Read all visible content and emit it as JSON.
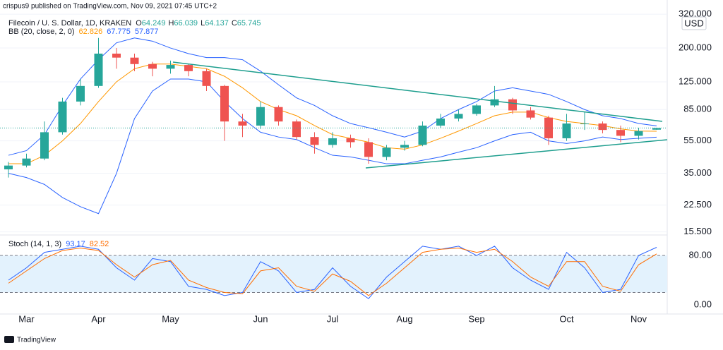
{
  "header": {
    "published": "crispus9 published on TradingView.com, Nov 09, 2021 07:45 UTC+2"
  },
  "footer": {
    "brand": "TradingView"
  },
  "chart_data": [
    {
      "type": "candlestick",
      "title": "Filecoin / U. S. Dollar, 1D, KRAKEN",
      "ohlc_labels": [
        "O",
        "H",
        "L",
        "C"
      ],
      "currency": "USD",
      "categories": [
        null,
        "Mar",
        null,
        null,
        null,
        "Apr",
        null,
        null,
        null,
        "May",
        null,
        null,
        null,
        null,
        "Jun",
        null,
        null,
        null,
        "Jul",
        null,
        null,
        null,
        "Aug",
        null,
        null,
        null,
        "Sep",
        null,
        null,
        null,
        null,
        "Oct",
        null,
        null,
        null,
        "Nov",
        null
      ],
      "open": [
        37,
        39,
        43,
        62,
        95,
        118,
        185,
        175,
        160,
        150,
        158,
        145,
        118,
        72,
        68,
        88,
        72,
        58,
        52,
        57,
        54,
        44,
        50,
        52,
        68,
        75,
        80,
        90,
        98,
        84,
        76,
        57,
        70,
        70,
        64,
        59,
        64.249
      ],
      "high": [
        41,
        46,
        72,
        100,
        130,
        230,
        200,
        185,
        165,
        168,
        160,
        150,
        120,
        80,
        95,
        90,
        74,
        62,
        62,
        60,
        57,
        52,
        55,
        72,
        80,
        85,
        92,
        118,
        100,
        88,
        78,
        80,
        82,
        72,
        68,
        66,
        66.039
      ],
      "low": [
        33,
        38,
        42,
        60,
        90,
        115,
        150,
        145,
        135,
        140,
        135,
        110,
        55,
        58,
        65,
        68,
        56,
        46,
        50,
        50,
        40,
        42,
        48,
        51,
        66,
        72,
        78,
        88,
        80,
        74,
        52,
        55,
        64,
        61,
        54,
        56,
        64.137
      ],
      "close": [
        39,
        43,
        62,
        95,
        118,
        185,
        175,
        160,
        150,
        158,
        145,
        118,
        72,
        68,
        88,
        72,
        58,
        52,
        57,
        54,
        44,
        50,
        52,
        68,
        75,
        80,
        90,
        98,
        84,
        76,
        57,
        70,
        70,
        64,
        59,
        63,
        65.745
      ],
      "up_color": "#26a69a",
      "down_color": "#ef5350",
      "indicator": {
        "label": "BB (20, close, 2, 0)",
        "series": [
          {
            "color": "#ff9800",
            "values": [
              40,
              40,
              45,
              55,
              70,
              95,
              125,
              150,
              160,
              160,
              155,
              150,
              135,
              115,
              95,
              85,
              78,
              68,
              60,
              57,
              54,
              50,
              49,
              52,
              57,
              63,
              70,
              78,
              82,
              82,
              76,
              72,
              70,
              68,
              65,
              63,
              62.826
            ]
          },
          {
            "color": "#2962ff",
            "values": [
              45,
              48,
              60,
              90,
              130,
              170,
              215,
              230,
              220,
              200,
              185,
              175,
              175,
              170,
              145,
              120,
              100,
              90,
              78,
              70,
              66,
              62,
              58,
              63,
              75,
              85,
              95,
              110,
              115,
              110,
              105,
              95,
              85,
              78,
              75,
              70,
              67.775
            ]
          },
          {
            "color": "#2962ff",
            "values": [
              35,
              33,
              30,
              25,
              22,
              20,
              35,
              75,
              110,
              130,
              130,
              125,
              95,
              75,
              62,
              58,
              56,
              50,
              45,
              44,
              42,
              40,
              40,
              42,
              44,
              47,
              50,
              55,
              60,
              62,
              55,
              53,
              55,
              58,
              56,
              57,
              57.877
            ]
          }
        ]
      },
      "ylim": [
        15,
        390
      ],
      "log": true,
      "yticks": [
        {
          "value": 15.5,
          "label": "15.500"
        },
        {
          "value": 22.5,
          "label": "22.500"
        },
        {
          "value": 35,
          "label": "35.000"
        },
        {
          "value": 55,
          "label": "55.000"
        },
        {
          "value": 85,
          "label": "85.000"
        },
        {
          "value": 125,
          "label": "125.000"
        },
        {
          "value": 200,
          "label": "200.000"
        },
        {
          "value": 320,
          "label": "320.000"
        }
      ]
    },
    {
      "type": "line",
      "title": "Stoch (14, 1, 3)",
      "series": [
        {
          "color": "#2962ff",
          "values": [
            40,
            60,
            85,
            90,
            95,
            90,
            60,
            40,
            75,
            70,
            30,
            25,
            15,
            20,
            70,
            55,
            20,
            25,
            60,
            30,
            10,
            45,
            70,
            95,
            90,
            95,
            80,
            95,
            60,
            40,
            25,
            85,
            60,
            20,
            25,
            80,
            93.17
          ]
        },
        {
          "color": "#ff6d00",
          "values": [
            35,
            55,
            75,
            88,
            92,
            88,
            65,
            45,
            65,
            72,
            40,
            28,
            20,
            18,
            55,
            60,
            30,
            22,
            50,
            38,
            15,
            35,
            60,
            85,
            90,
            92,
            85,
            90,
            70,
            45,
            30,
            70,
            70,
            30,
            22,
            65,
            82.52
          ]
        }
      ],
      "band": [
        20,
        80
      ],
      "band_color": "#e3f2fd",
      "ylim": [
        -14.9,
        110.9
      ],
      "yticks": [
        {
          "value": 0,
          "label": "0.00"
        },
        {
          "value": 80,
          "label": "80.00"
        }
      ]
    }
  ]
}
